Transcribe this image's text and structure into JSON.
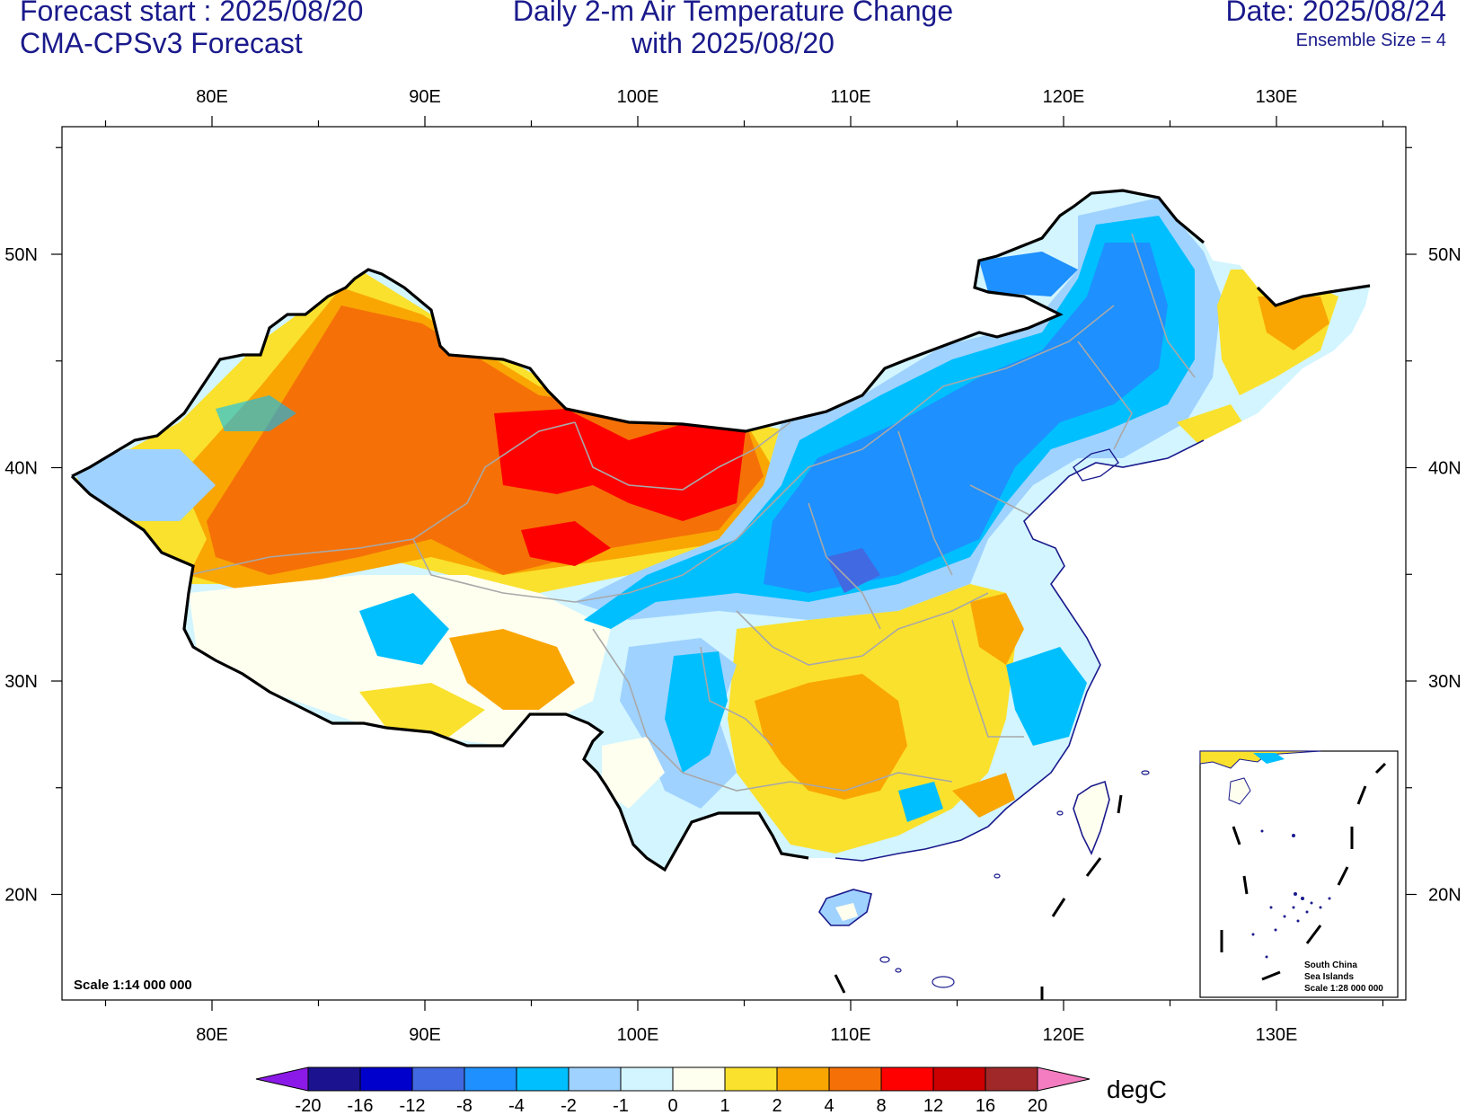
{
  "header": {
    "forecast_start": "Forecast start : 2025/08/20",
    "model": "CMA-CPSv3 Forecast",
    "title_line1": "Daily 2-m Air Temperature Change",
    "title_line2": "with 2025/08/20",
    "date": "Date: 2025/08/24",
    "ensemble": "Ensemble Size = 4"
  },
  "axes": {
    "x_ticks": [
      "80E",
      "90E",
      "100E",
      "110E",
      "120E",
      "130E"
    ],
    "y_ticks": [
      "50N",
      "40N",
      "30N",
      "20N"
    ]
  },
  "map": {
    "scale_label": "Scale 1:14 000 000",
    "inset_label_1": "South China",
    "inset_label_2": "Sea Islands",
    "inset_scale": "Scale 1:28 000 000"
  },
  "colorbar": {
    "unit": "degC",
    "labels": [
      "-20",
      "-16",
      "-12",
      "-8",
      "-4",
      "-2",
      "-1",
      "0",
      "1",
      "2",
      "4",
      "8",
      "12",
      "16",
      "20"
    ],
    "colors": [
      "#1a128f",
      "#0000cc",
      "#4169e1",
      "#1e90ff",
      "#00bfff",
      "#a0d2ff",
      "#d2f5ff",
      "#fffff0",
      "#fae12d",
      "#f9a603",
      "#f57107",
      "#ff0000",
      "#cc0000",
      "#a02828"
    ],
    "low_color": "#8b19e8",
    "high_color": "#f47cc0"
  }
}
